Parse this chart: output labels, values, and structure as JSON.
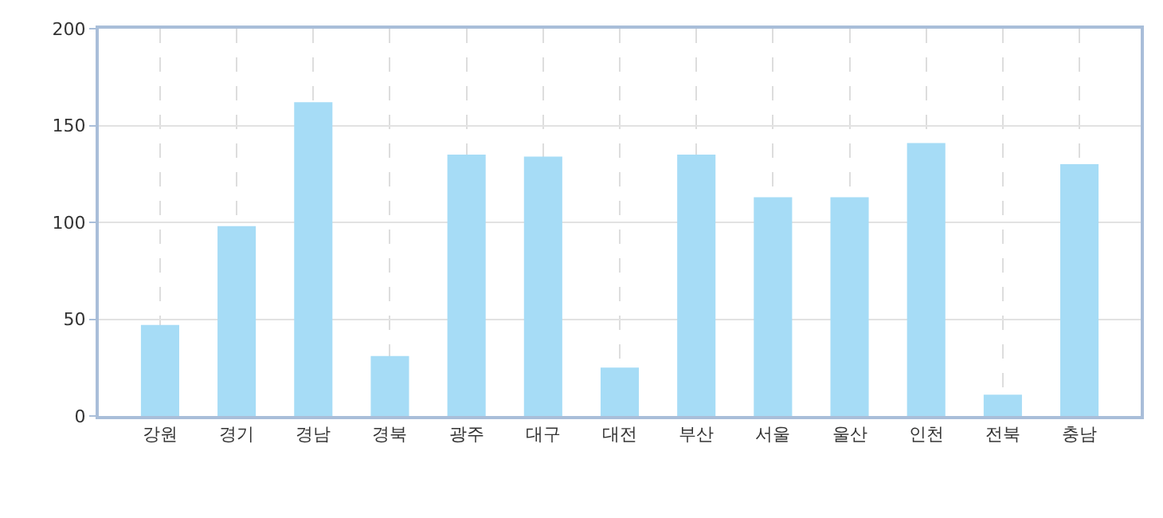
{
  "chart_data": {
    "type": "bar",
    "categories": [
      "강원",
      "경기",
      "경남",
      "경북",
      "광주",
      "대구",
      "대전",
      "부산",
      "서울",
      "울산",
      "인천",
      "전북",
      "충남"
    ],
    "values": [
      47,
      98,
      162,
      31,
      135,
      134,
      25,
      135,
      113,
      113,
      141,
      11,
      130
    ],
    "color": "#a6dcf6",
    "ylim": [
      0,
      200
    ],
    "yticks": [
      0,
      50,
      100,
      150,
      200
    ],
    "grid": true
  }
}
